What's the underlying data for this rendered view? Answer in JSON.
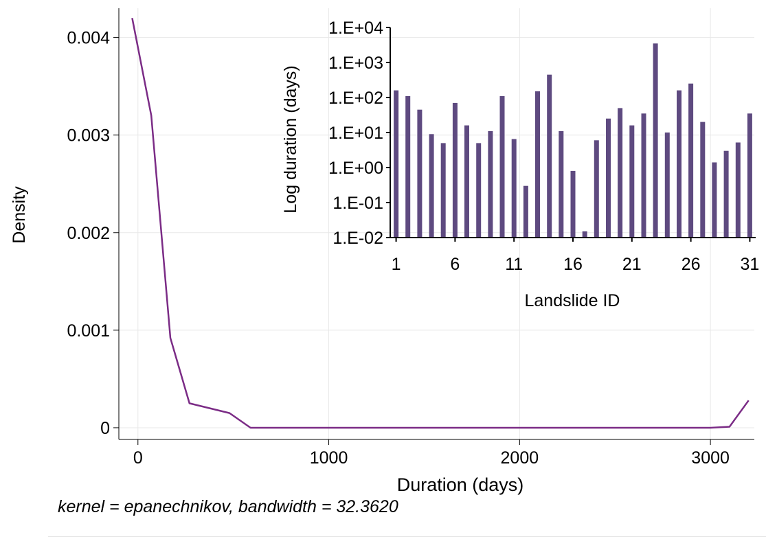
{
  "chart_data": [
    {
      "type": "line",
      "title": "",
      "xlabel": "Duration (days)",
      "ylabel": "Density",
      "xlim": [
        -100,
        3230
      ],
      "ylim": [
        -0.00012,
        0.0043
      ],
      "xticks": [
        0,
        1000,
        2000,
        3000
      ],
      "xtick_labels": [
        "0",
        "1000",
        "2000",
        "3000"
      ],
      "yticks": [
        0,
        0.001,
        0.002,
        0.003,
        0.004
      ],
      "ytick_labels": [
        "0",
        "0.001",
        "0.002",
        "0.003",
        "0.004"
      ],
      "grid": true,
      "color": "#7b2c86",
      "x": [
        -30,
        70,
        170,
        270,
        480,
        590,
        700,
        1500,
        2500,
        3000,
        3100,
        3200
      ],
      "y": [
        0.0042,
        0.0032,
        0.00092,
        0.00025,
        0.00015,
        0.0,
        0.0,
        0.0,
        0.0,
        0.0,
        1e-05,
        0.00028
      ]
    },
    {
      "type": "bar",
      "title": "",
      "xlabel": "Landslide ID",
      "ylabel": "Log duration (days)",
      "log_scale_y": true,
      "ylim": [
        0.01,
        10000
      ],
      "yticks": [
        0.01,
        0.1,
        1,
        10,
        100,
        1000,
        10000
      ],
      "ytick_labels": [
        "1.E-02",
        "1.E-01",
        "1.E+00",
        "1.E+01",
        "1.E+02",
        "1.E+03",
        "1.E+04"
      ],
      "xtick_labels": [
        "1",
        "6",
        "11",
        "16",
        "21",
        "26",
        "31"
      ],
      "xtick_positions": [
        1,
        6,
        11,
        16,
        21,
        26,
        31
      ],
      "grid": false,
      "color": "#5e4a80",
      "categories": [
        1,
        2,
        3,
        4,
        5,
        6,
        7,
        8,
        9,
        10,
        11,
        12,
        13,
        14,
        15,
        16,
        17,
        18,
        19,
        20,
        21,
        22,
        23,
        24,
        25,
        26,
        27,
        28,
        29,
        30,
        31
      ],
      "values": [
        160,
        110,
        45,
        9,
        5,
        70,
        16,
        5,
        11,
        110,
        6.5,
        0.3,
        150,
        450,
        11,
        0.8,
        0.015,
        6,
        25,
        50,
        16,
        35,
        3500,
        10,
        160,
        250,
        20,
        1.4,
        3,
        5.2,
        35
      ]
    }
  ],
  "note": "kernel = epanechnikov, bandwidth = 32.3620"
}
